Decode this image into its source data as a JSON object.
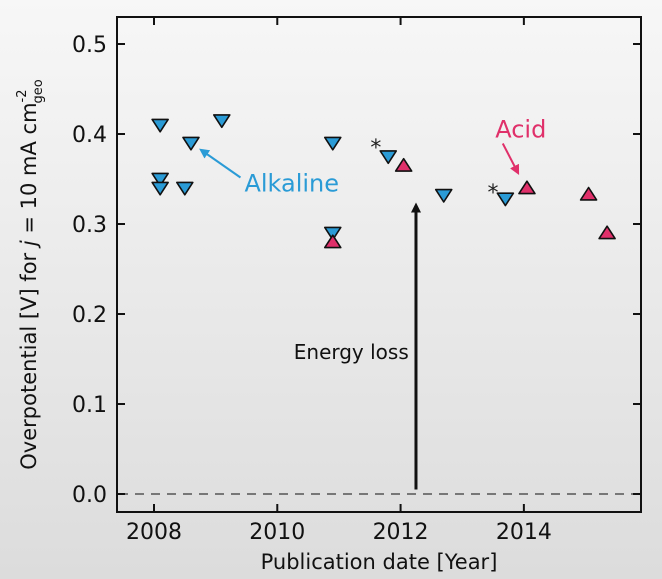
{
  "chart_data": {
    "type": "scatter",
    "xlabel": "Publication date [Year]",
    "ylabel_prefix": "Overpotential [V] for ",
    "ylabel_var": "j",
    "ylabel_eq": " = 10 mA cm",
    "ylabel_sup": "-2",
    "ylabel_sub": "geo",
    "xlim": [
      2007.4,
      2015.9
    ],
    "ylim": [
      -0.02,
      0.53
    ],
    "xticks": [
      2008,
      2010,
      2012,
      2014
    ],
    "xtick_labels": [
      "2008",
      "2010",
      "2012",
      "2014"
    ],
    "yticks": [
      0.0,
      0.1,
      0.2,
      0.3,
      0.4,
      0.5
    ],
    "ytick_labels": [
      "0.0",
      "0.1",
      "0.2",
      "0.3",
      "0.4",
      "0.5"
    ],
    "grid": false,
    "reference_line": {
      "y": 0.0,
      "style": "dashed"
    },
    "series": [
      {
        "name": "Alkaline",
        "marker": "triangle-down",
        "color": "#2a9bd6",
        "points": [
          {
            "x": 2008.1,
            "y": 0.41
          },
          {
            "x": 2008.1,
            "y": 0.35
          },
          {
            "x": 2008.1,
            "y": 0.34
          },
          {
            "x": 2008.5,
            "y": 0.34
          },
          {
            "x": 2008.6,
            "y": 0.39
          },
          {
            "x": 2009.1,
            "y": 0.415
          },
          {
            "x": 2010.9,
            "y": 0.39
          },
          {
            "x": 2010.9,
            "y": 0.29
          },
          {
            "x": 2011.8,
            "y": 0.375
          },
          {
            "x": 2012.7,
            "y": 0.332
          },
          {
            "x": 2013.7,
            "y": 0.328
          }
        ]
      },
      {
        "name": "Acid",
        "marker": "triangle-up",
        "color": "#e0306a",
        "points": [
          {
            "x": 2010.9,
            "y": 0.28
          },
          {
            "x": 2012.05,
            "y": 0.365
          },
          {
            "x": 2014.05,
            "y": 0.34
          },
          {
            "x": 2015.05,
            "y": 0.333
          },
          {
            "x": 2015.35,
            "y": 0.29
          }
        ]
      }
    ],
    "asterisks": [
      {
        "x": 2011.6,
        "y": 0.388,
        "text": "*"
      },
      {
        "x": 2013.5,
        "y": 0.338,
        "text": "*"
      }
    ],
    "annotations": {
      "alkaline_label": {
        "text": "Alkaline",
        "color": "#2a9bd6",
        "x": 2009.5,
        "y": 0.345,
        "arrow_to": [
          2008.75,
          0.385
        ]
      },
      "acid_label": {
        "text": "Acid",
        "color": "#e0306a",
        "x": 2013.95,
        "y": 0.405,
        "arrow_to": [
          2013.95,
          0.355
        ]
      },
      "energy_loss": {
        "text": "Energy loss",
        "color": "#111111",
        "x": 2011.2,
        "y": 0.15,
        "arrow_from": [
          2012.25,
          0.005
        ],
        "arrow_to": [
          2012.25,
          0.325
        ]
      }
    }
  }
}
